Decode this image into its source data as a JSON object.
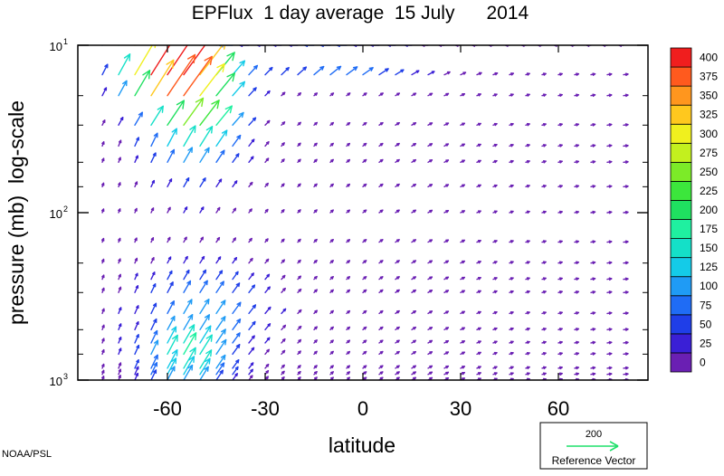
{
  "chart_data": {
    "type": "vector",
    "title": "EPFlux  1 day average  15 July      2014",
    "xlabel": "latitude",
    "ylabel": "pressure (mb)  log-scale",
    "x_ticks": [
      -60,
      -30,
      0,
      30,
      60
    ],
    "x_tick_labels": [
      "-60",
      "-30",
      "0",
      "30",
      "60"
    ],
    "xlim": [
      -87.5,
      87.5
    ],
    "y_scale": "log",
    "y_reversed": true,
    "ylim": [
      1000,
      10
    ],
    "y_major_ticks": [
      {
        "value": 10,
        "base": "10",
        "exp": "1"
      },
      {
        "value": 100,
        "base": "10",
        "exp": "2"
      },
      {
        "value": 1000,
        "base": "10",
        "exp": "3"
      }
    ],
    "y_minor_ticks": [
      20,
      30,
      50,
      70,
      200,
      300,
      500,
      700
    ],
    "grid": false,
    "colorbar": {
      "position": "right",
      "levels": [
        0,
        25,
        50,
        75,
        100,
        125,
        150,
        175,
        200,
        225,
        250,
        275,
        300,
        325,
        350,
        375,
        400
      ],
      "colors": [
        "#6a1fb3",
        "#3a1fd6",
        "#1f3ee8",
        "#1f6cf5",
        "#1f9bf5",
        "#14cbe8",
        "#14e0c8",
        "#1ff0a0",
        "#1fe060",
        "#3ce63c",
        "#7ceb28",
        "#c3f01e",
        "#f0f01e",
        "#ffc81e",
        "#ff961e",
        "#ff5a1e",
        "#f01e1e"
      ]
    },
    "reference_vector": {
      "magnitude": "200",
      "label": "Reference Vector"
    },
    "pressure_levels": [
      10,
      15,
      20,
      30,
      40,
      50,
      70,
      100,
      150,
      200,
      250,
      300,
      400,
      500,
      600,
      700,
      850,
      925,
      1000
    ],
    "latitude_step": 5,
    "vectors_note_units": "magnitude-colored arrows; x,y in degrees latitude / mb"
  },
  "footer": {
    "credit": "NOAA/PSL"
  }
}
